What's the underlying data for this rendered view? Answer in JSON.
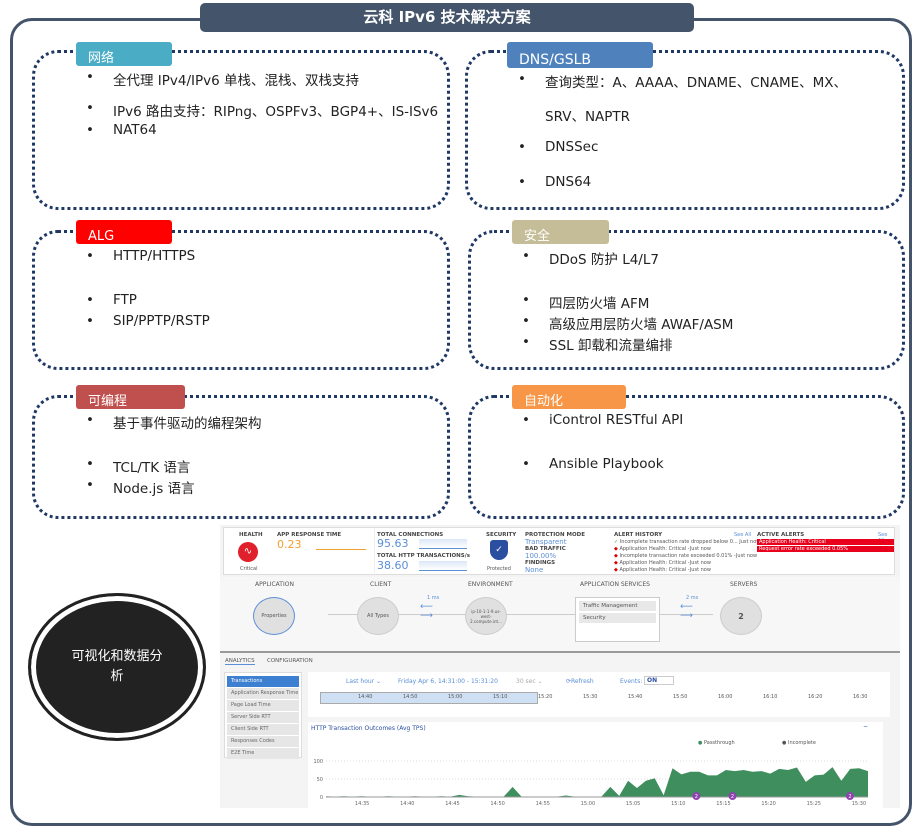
{
  "title": "云科 IPv6 技术解决方案",
  "sections": {
    "network": {
      "label": "网络",
      "color": "#4bacc6",
      "items": [
        "全代理 IPv4/IPv6 单栈、混栈、双栈支持",
        "IPv6 路由支持：RIPng、OSPFv3、BGP4+、IS-ISv6",
        "NAT64"
      ]
    },
    "dns": {
      "label": "DNS/GSLB",
      "color": "#4f81bd",
      "items": [
        "查询类型：A、AAAA、DNAME、CNAME、MX、",
        "SRV、NAPTR",
        "DNSSec",
        "DNS64"
      ]
    },
    "alg": {
      "label": "ALG",
      "color": "#ff0000",
      "items": [
        "HTTP/HTTPS",
        "FTP",
        "SIP/PPTP/RSTP"
      ]
    },
    "security": {
      "label": "安全",
      "color": "#c4bd97",
      "items": [
        "DDoS 防护 L4/L7",
        "四层防火墙 AFM",
        "高级应用层防火墙 AWAF/ASM",
        "SSL 卸载和流量编排"
      ]
    },
    "programmable": {
      "label": "可编程",
      "color": "#c0504d",
      "items": [
        "基于事件驱动的编程架构",
        "TCL/TK 语言",
        "Node.js 语言"
      ]
    },
    "automation": {
      "label": "自动化",
      "color": "#f79646",
      "items": [
        "iControl RESTful API",
        "Ansible Playbook"
      ]
    }
  },
  "circle": {
    "text": "可视化和数据分析"
  },
  "dashboard": {
    "health": {
      "label": "HEALTH",
      "status": "Critical"
    },
    "app_response": {
      "label": "APP RESPONSE TIME",
      "value": "0.23"
    },
    "connections": {
      "label": "TOTAL CONNECTIONS",
      "value": "95.63",
      "http_label": "TOTAL HTTP TRANSACTIONS/s",
      "http_value": "38.60"
    },
    "security": {
      "label": "SECURITY",
      "status": "Protected"
    },
    "protection": {
      "mode_label": "PROTECTION MODE",
      "mode": "Transparent",
      "bad_label": "BAD TRAFFIC",
      "bad": "100.00%",
      "findings_label": "FINDINGS",
      "findings": "None"
    },
    "alert_history": {
      "label": "ALERT HISTORY",
      "see_all": "See All",
      "items": [
        "Incomplete transaction rate dropped below 0... Just now",
        "Application Health: Critical -Just now",
        "Incomplete transaction rate exceeded 0.01% -Just now",
        "Application Health: Critical -Just now",
        "Application Health: Critical -Just now"
      ]
    },
    "active_alerts": {
      "label": "ACTIVE ALERTS",
      "see_all": "See All",
      "items": [
        "Application Health: Critical",
        "Request error rate exceeded 0.05%"
      ]
    },
    "flow": {
      "application": "APPLICATION",
      "properties": "Properties",
      "client": "CLIENT",
      "all_types": "All Types",
      "client_latency": "1 ms",
      "environment": "ENVIRONMENT",
      "env_node": "ip-10-1-1-9.us-west-2.compute.int...",
      "app_services": "APPLICATION SERVICES",
      "services": [
        "Traffic Management",
        "Security"
      ],
      "server_latency": "2 ms",
      "servers": "SERVERS",
      "server_count": "2"
    },
    "tabs": [
      "ANALYTICS",
      "CONFIGURATION"
    ],
    "nav": [
      "Transactions",
      "Application Response Time",
      "Page Load Time",
      "Server Side RTT",
      "Client Side RTT",
      "Responses Codes",
      "E2E Time"
    ],
    "toolbar": {
      "range": "Last hour ⌄",
      "window": "Friday Apr 6, 14:31:00 - 15:31:20",
      "interval": "30 sec ⌄",
      "refresh": "Refresh",
      "events_label": "Events:",
      "events_state": "ON"
    },
    "timeline_ticks": [
      "14:40",
      "14:50",
      "15:00",
      "15:10",
      "15:20",
      "15:30",
      "15:40",
      "15:50",
      "16:00",
      "16:10",
      "16:20",
      "16:30"
    ]
  },
  "chart_data": {
    "type": "area",
    "title": "HTTP Transaction Outcomes (Avg TPS)",
    "legend": [
      "Passthrough",
      "Incomplete"
    ],
    "legend_placement": "top-right",
    "colors": {
      "Passthrough": "#3e8e5e",
      "Incomplete": "#111111"
    },
    "ylim": [
      0,
      100
    ],
    "yticks": [
      "0",
      "50",
      "100"
    ],
    "xticks": [
      "14:35",
      "14:40",
      "14:45",
      "14:50",
      "14:55",
      "15:00",
      "15:05",
      "15:10",
      "15:15",
      "15:20",
      "15:25",
      "15:30"
    ],
    "x_start": "14:31",
    "x_end": "15:31",
    "series": [
      {
        "name": "Passthrough",
        "values": [
          2,
          1,
          2,
          1,
          2,
          1,
          1,
          2,
          1,
          1,
          2,
          1,
          1,
          2,
          1,
          6,
          2,
          1,
          1,
          1,
          1,
          28,
          1,
          1,
          1,
          1,
          1,
          4,
          1,
          1,
          1,
          1,
          28,
          3,
          45,
          25,
          45,
          52,
          5,
          80,
          63,
          70,
          70,
          60,
          60,
          75,
          72,
          75,
          70,
          72,
          65,
          78,
          75,
          82,
          42,
          60,
          62,
          83,
          45,
          78,
          80,
          72
        ]
      }
    ],
    "event_markers": [
      {
        "time": "15:12",
        "count": "2"
      },
      {
        "time": "15:16",
        "count": "2"
      },
      {
        "time": "15:29",
        "count": "2"
      }
    ]
  }
}
